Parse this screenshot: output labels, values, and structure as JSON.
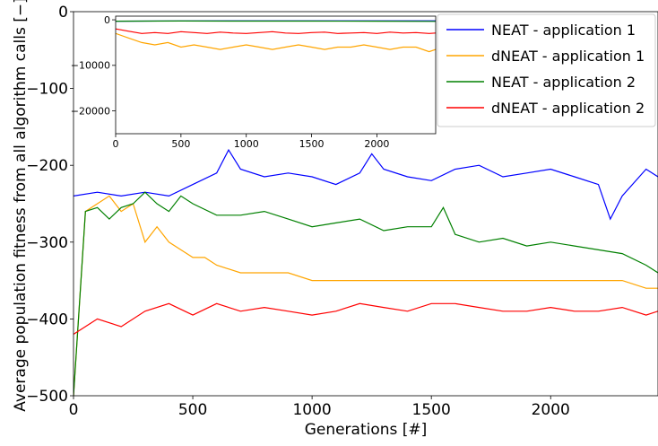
{
  "chart_data": [
    {
      "type": "line",
      "title": "",
      "xlabel": "Generations [#]",
      "ylabel": "Average population fitness from all algorithm calls [−]",
      "xlim": [
        0,
        2450
      ],
      "ylim": [
        -500,
        0
      ],
      "xticks": [
        0,
        500,
        1000,
        1500,
        2000
      ],
      "yticks": [
        0,
        -100,
        -200,
        -300,
        -400,
        -500
      ],
      "xtick_labels": [
        "0",
        "500",
        "1000",
        "1500",
        "2000"
      ],
      "ytick_labels": [
        "0",
        "−100",
        "−200",
        "−300",
        "−400",
        "−500"
      ],
      "grid": false,
      "legend": "top-right",
      "series": [
        {
          "name": "NEAT - application 1",
          "color": "#0000ff",
          "x": [
            0,
            100,
            200,
            300,
            400,
            500,
            600,
            650,
            700,
            800,
            900,
            1000,
            1100,
            1200,
            1250,
            1300,
            1400,
            1500,
            1600,
            1700,
            1800,
            1900,
            2000,
            2100,
            2200,
            2250,
            2300,
            2400,
            2450
          ],
          "y": [
            -240,
            -235,
            -240,
            -235,
            -240,
            -225,
            -210,
            -180,
            -205,
            -215,
            -210,
            -215,
            -225,
            -210,
            -185,
            -205,
            -215,
            -220,
            -205,
            -200,
            -215,
            -210,
            -205,
            -215,
            -225,
            -270,
            -240,
            -205,
            -215
          ]
        },
        {
          "name": "dNEAT - application 1",
          "color": "#ffa500",
          "x": [
            0,
            50,
            100,
            150,
            200,
            250,
            300,
            350,
            400,
            450,
            500,
            550,
            600,
            700,
            800,
            900,
            1000,
            1100,
            1200,
            1300,
            1400,
            1500,
            1600,
            1700,
            1800,
            1900,
            2000,
            2100,
            2200,
            2300,
            2400,
            2450
          ],
          "y": [
            -500,
            -260,
            -250,
            -240,
            -260,
            -250,
            -300,
            -280,
            -300,
            -310,
            -320,
            -320,
            -330,
            -340,
            -340,
            -340,
            -350,
            -350,
            -350,
            -350,
            -350,
            -350,
            -350,
            -350,
            -350,
            -350,
            -350,
            -350,
            -350,
            -350,
            -360,
            -360
          ]
        },
        {
          "name": "NEAT - application 2",
          "color": "#008000",
          "x": [
            0,
            50,
            100,
            150,
            200,
            250,
            300,
            350,
            400,
            450,
            500,
            600,
            700,
            800,
            900,
            1000,
            1100,
            1200,
            1300,
            1400,
            1500,
            1550,
            1600,
            1700,
            1800,
            1900,
            2000,
            2100,
            2200,
            2300,
            2400,
            2450
          ],
          "y": [
            -500,
            -260,
            -255,
            -270,
            -255,
            -250,
            -235,
            -250,
            -260,
            -240,
            -250,
            -265,
            -265,
            -260,
            -270,
            -280,
            -275,
            -270,
            -285,
            -280,
            -280,
            -255,
            -290,
            -300,
            -295,
            -305,
            -300,
            -305,
            -310,
            -315,
            -330,
            -340
          ]
        },
        {
          "name": "dNEAT - application 2",
          "color": "#ff0000",
          "x": [
            0,
            100,
            200,
            300,
            400,
            500,
            600,
            700,
            800,
            900,
            1000,
            1100,
            1200,
            1300,
            1400,
            1500,
            1600,
            1700,
            1800,
            1900,
            2000,
            2100,
            2200,
            2300,
            2400,
            2450
          ],
          "y": [
            -420,
            -400,
            -410,
            -390,
            -380,
            -395,
            -380,
            -390,
            -385,
            -390,
            -395,
            -390,
            -380,
            -385,
            -390,
            -380,
            -380,
            -385,
            -390,
            -390,
            -385,
            -390,
            -390,
            -385,
            -395,
            -390
          ]
        }
      ]
    },
    {
      "type": "line",
      "title": "",
      "xlabel": "",
      "ylabel": "",
      "xlim": [
        0,
        2450
      ],
      "ylim": [
        -25000,
        800
      ],
      "xticks": [
        0,
        500,
        1000,
        1500,
        2000
      ],
      "yticks": [
        0,
        -10000,
        -20000
      ],
      "xtick_labels": [
        "0",
        "500",
        "1000",
        "1500",
        "2000"
      ],
      "ytick_labels": [
        "0",
        "−10000",
        "−20000"
      ],
      "grid": false,
      "series": [
        {
          "name": "NEAT - application 1",
          "color": "#0000ff",
          "x": [
            0,
            500,
            1000,
            1500,
            2000,
            2450
          ],
          "y": [
            -300,
            -250,
            -230,
            -220,
            -220,
            -230
          ]
        },
        {
          "name": "dNEAT - application 1",
          "color": "#ffa500",
          "x": [
            0,
            100,
            200,
            300,
            400,
            500,
            600,
            700,
            800,
            900,
            1000,
            1100,
            1200,
            1300,
            1400,
            1500,
            1600,
            1700,
            1800,
            1900,
            2000,
            2100,
            2200,
            2300,
            2400,
            2450
          ],
          "y": [
            -3000,
            -4000,
            -5000,
            -5500,
            -5000,
            -6000,
            -5500,
            -6000,
            -6500,
            -6000,
            -5500,
            -6000,
            -6500,
            -6000,
            -5500,
            -6000,
            -6500,
            -6000,
            -6000,
            -5500,
            -6000,
            -6500,
            -6000,
            -6000,
            -7000,
            -6500
          ]
        },
        {
          "name": "NEAT - application 2",
          "color": "#008000",
          "x": [
            0,
            500,
            1000,
            1500,
            2000,
            2450
          ],
          "y": [
            -300,
            -260,
            -280,
            -280,
            -300,
            -340
          ]
        },
        {
          "name": "dNEAT - application 2",
          "color": "#ff0000",
          "x": [
            0,
            100,
            200,
            300,
            400,
            500,
            600,
            700,
            800,
            900,
            1000,
            1100,
            1200,
            1300,
            1400,
            1500,
            1600,
            1700,
            1800,
            1900,
            2000,
            2100,
            2200,
            2300,
            2400,
            2450
          ],
          "y": [
            -2000,
            -2500,
            -3000,
            -2800,
            -3000,
            -2600,
            -2800,
            -3000,
            -2700,
            -2900,
            -3000,
            -2800,
            -2600,
            -2900,
            -3000,
            -2800,
            -2700,
            -3000,
            -2900,
            -2800,
            -3000,
            -2700,
            -2900,
            -2800,
            -3000,
            -2900
          ]
        }
      ]
    }
  ]
}
